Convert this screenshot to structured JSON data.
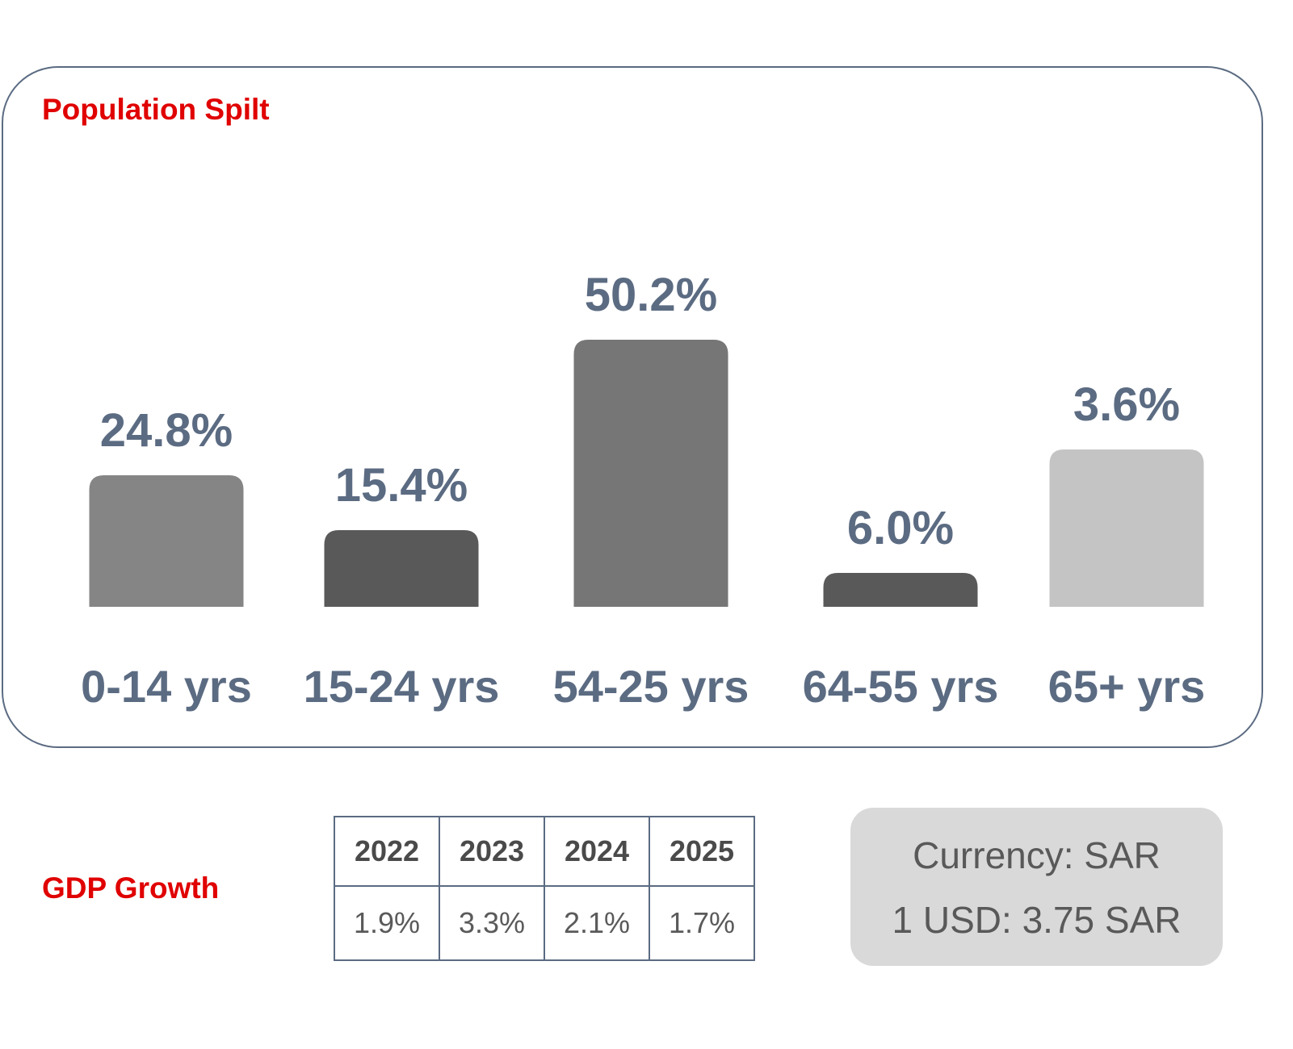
{
  "population": {
    "title": "Population Spilt"
  },
  "chart_data": {
    "type": "bar",
    "title": "Population Spilt",
    "categories": [
      "0-14 yrs",
      "15-24 yrs",
      "54-25 yrs",
      "64-55 yrs",
      "65+ yrs"
    ],
    "values": [
      24.8,
      15.4,
      50.2,
      6.0,
      3.6
    ],
    "data_labels": [
      "24.8%",
      "15.4%",
      "50.2%",
      "6.0%",
      "3.6%"
    ],
    "bar_colors": [
      "#858585",
      "#595959",
      "#767676",
      "#595959",
      "#c4c4c4"
    ],
    "label_color": "#5b6b82",
    "xlabel": "",
    "ylabel": "",
    "grid": false,
    "axes_visible": false
  },
  "gdp": {
    "title": "GDP Growth",
    "years": [
      "2022",
      "2023",
      "2024",
      "2025"
    ],
    "values": [
      "1.9%",
      "3.3%",
      "2.1%",
      "1.7%"
    ]
  },
  "currency": {
    "line1": "Currency: SAR",
    "line2": "1 USD: 3.75 SAR"
  },
  "colors": {
    "accent_red": "#e00000",
    "slate": "#5b6b82"
  }
}
